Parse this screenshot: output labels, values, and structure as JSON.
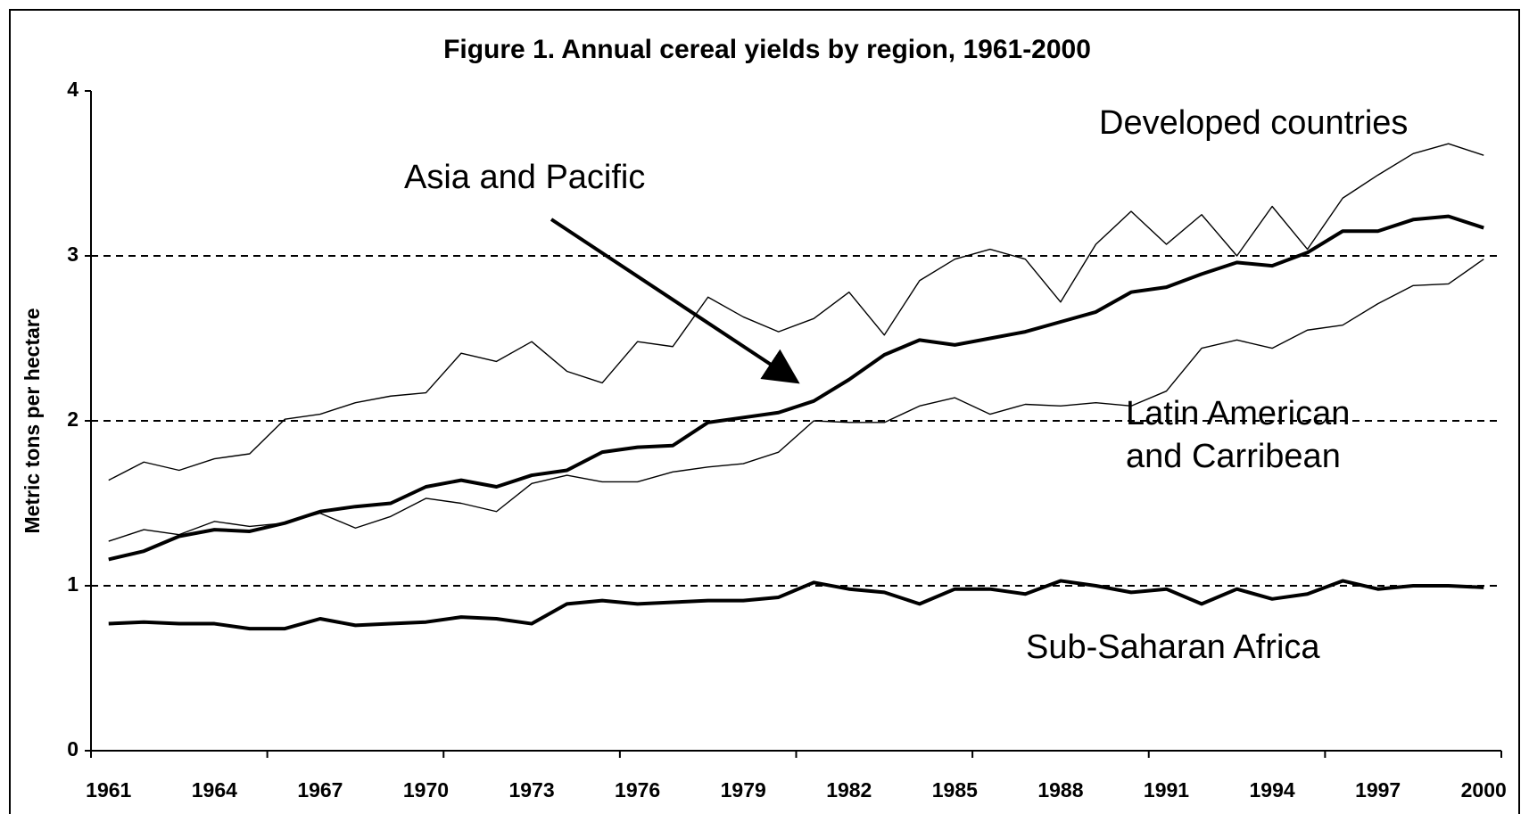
{
  "chart_data": {
    "type": "line",
    "title": "Figure 1. Annual cereal yields by region, 1961-2000",
    "y_label": "Metric tons per hectare",
    "categories": [
      "1961",
      null,
      null,
      "1964",
      null,
      null,
      "1967",
      null,
      null,
      "1970",
      null,
      null,
      "1973",
      null,
      null,
      "1976",
      null,
      null,
      "1979",
      null,
      null,
      "1982",
      null,
      null,
      "1985",
      null,
      null,
      "1988",
      null,
      null,
      "1991",
      null,
      null,
      "1994",
      null,
      null,
      "1997",
      null,
      null,
      "2000"
    ],
    "ylim": [
      0,
      4
    ],
    "yticks": [
      0,
      1,
      2,
      3,
      4
    ],
    "grid": true,
    "series": [
      {
        "name": "Developed countries",
        "color": "#000000",
        "width": 1.4,
        "values": [
          1.64,
          1.75,
          1.7,
          1.77,
          1.8,
          2.01,
          2.04,
          2.11,
          2.15,
          2.17,
          2.41,
          2.36,
          2.48,
          2.3,
          2.23,
          2.48,
          2.45,
          2.75,
          2.63,
          2.54,
          2.62,
          2.78,
          2.52,
          2.85,
          2.98,
          3.04,
          2.98,
          2.72,
          3.07,
          3.27,
          3.07,
          3.25,
          3.0,
          3.3,
          3.04,
          3.35,
          3.49,
          3.62,
          3.68,
          3.61
        ]
      },
      {
        "name": "Asia and Pacific",
        "color": "#000000",
        "width": 4,
        "values": [
          1.16,
          1.21,
          1.3,
          1.34,
          1.33,
          1.38,
          1.45,
          1.48,
          1.5,
          1.6,
          1.64,
          1.6,
          1.67,
          1.7,
          1.81,
          1.84,
          1.85,
          1.99,
          2.02,
          2.05,
          2.12,
          2.25,
          2.4,
          2.49,
          2.46,
          2.5,
          2.54,
          2.6,
          2.66,
          2.78,
          2.81,
          2.89,
          2.96,
          2.94,
          3.02,
          3.15,
          3.15,
          3.22,
          3.24,
          3.17
        ]
      },
      {
        "name": "Latin American and Carribean",
        "color": "#000000",
        "width": 1.4,
        "values": [
          1.27,
          1.34,
          1.31,
          1.39,
          1.36,
          1.38,
          1.44,
          1.35,
          1.42,
          1.53,
          1.5,
          1.45,
          1.62,
          1.67,
          1.63,
          1.63,
          1.69,
          1.72,
          1.74,
          1.81,
          2.0,
          1.99,
          1.99,
          2.09,
          2.14,
          2.04,
          2.1,
          2.09,
          2.11,
          2.09,
          2.18,
          2.44,
          2.49,
          2.44,
          2.55,
          2.58,
          2.71,
          2.82,
          2.83,
          2.98
        ]
      },
      {
        "name": "Sub-Saharan Africa",
        "color": "#000000",
        "width": 4,
        "values": [
          0.77,
          0.78,
          0.77,
          0.77,
          0.74,
          0.74,
          0.8,
          0.76,
          0.77,
          0.78,
          0.81,
          0.8,
          0.77,
          0.89,
          0.91,
          0.89,
          0.9,
          0.91,
          0.91,
          0.93,
          1.02,
          0.98,
          0.96,
          0.89,
          0.98,
          0.98,
          0.95,
          1.03,
          1.0,
          0.96,
          0.98,
          0.89,
          0.98,
          0.92,
          0.95,
          1.03,
          0.98,
          1.0,
          1.0,
          0.99
        ]
      }
    ]
  }
}
